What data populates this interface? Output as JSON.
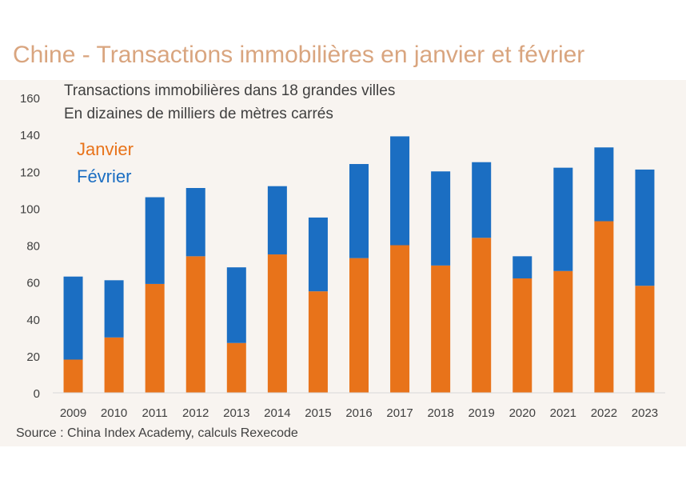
{
  "title": "Chine - Transactions immobilières en janvier et février",
  "subtitle_line1": "Transactions immobilières dans 18 grandes villes",
  "subtitle_line2": "En dizaines de milliers de mètres carrés",
  "source": "Source : China Index Academy, calculs Rexecode",
  "colors": {
    "janvier": "#E8731A",
    "fevrier": "#1B6EC2",
    "title": "#D9A57F",
    "panel": "#F8F4F0"
  },
  "chart_data": {
    "type": "bar",
    "stacked": true,
    "categories": [
      "2009",
      "2010",
      "2011",
      "2012",
      "2013",
      "2014",
      "2015",
      "2016",
      "2017",
      "2018",
      "2019",
      "2020",
      "2021",
      "2022",
      "2023"
    ],
    "series": [
      {
        "name": "Janvier",
        "values": [
          18,
          30,
          59,
          74,
          27,
          75,
          55,
          73,
          80,
          69,
          84,
          62,
          66,
          93,
          58
        ]
      },
      {
        "name": "Février",
        "values": [
          45,
          31,
          47,
          37,
          41,
          37,
          40,
          51,
          59,
          51,
          41,
          12,
          56,
          40,
          63
        ]
      }
    ],
    "ylim": [
      0,
      160
    ],
    "yticks": [
      0,
      20,
      40,
      60,
      80,
      100,
      120,
      140,
      160
    ],
    "grid": false,
    "legend": "top-left"
  }
}
